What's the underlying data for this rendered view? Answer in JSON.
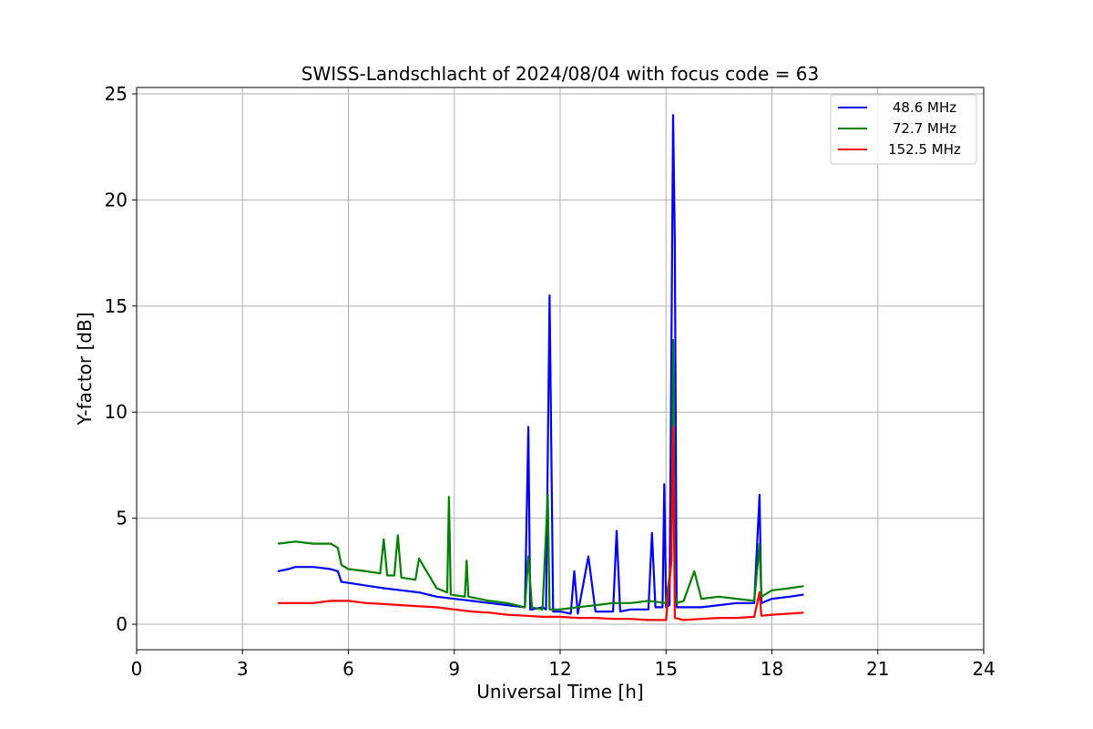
{
  "chart_data": {
    "type": "line",
    "title": "SWISS-Landschlacht of 2024/08/04 with focus code = 63",
    "xlabel": "Universal Time [h]",
    "ylabel": "Y-factor [dB]",
    "xlim": [
      0,
      24
    ],
    "ylim": [
      -1.2,
      25.3
    ],
    "xticks": [
      0,
      3,
      6,
      9,
      12,
      15,
      18,
      21,
      24
    ],
    "yticks": [
      0,
      5,
      10,
      15,
      20,
      25
    ],
    "grid": true,
    "legend_position": "top-right",
    "series": [
      {
        "name": "48.6 MHz",
        "color": "#0000ff",
        "x": [
          4.0,
          4.3,
          4.5,
          5.0,
          5.5,
          5.7,
          5.8,
          6.2,
          6.6,
          7.0,
          7.5,
          8.0,
          8.5,
          9.0,
          9.5,
          10.0,
          10.5,
          11.0,
          11.1,
          11.15,
          11.2,
          11.5,
          11.6,
          11.7,
          11.8,
          12.0,
          12.3,
          12.4,
          12.5,
          12.8,
          13.0,
          13.5,
          13.6,
          13.7,
          14.0,
          14.5,
          14.6,
          14.7,
          14.9,
          14.95,
          15.0,
          15.1,
          15.2,
          15.25,
          15.3,
          15.5,
          16.0,
          16.5,
          17.0,
          17.5,
          17.65,
          17.7,
          18.0,
          18.5,
          18.9
        ],
        "y": [
          2.5,
          2.6,
          2.7,
          2.7,
          2.6,
          2.5,
          2.0,
          1.9,
          1.8,
          1.7,
          1.6,
          1.5,
          1.3,
          1.2,
          1.1,
          1.0,
          0.9,
          0.8,
          9.3,
          0.7,
          0.7,
          0.8,
          0.7,
          15.5,
          0.6,
          0.6,
          0.5,
          2.5,
          0.5,
          3.2,
          0.6,
          0.6,
          4.4,
          0.6,
          0.7,
          0.7,
          4.3,
          0.8,
          0.8,
          6.6,
          0.8,
          0.9,
          24.0,
          18.0,
          0.8,
          0.8,
          0.8,
          0.9,
          1.0,
          1.0,
          6.1,
          1.0,
          1.2,
          1.3,
          1.4
        ]
      },
      {
        "name": "72.7 MHz",
        "color": "#008000",
        "x": [
          4.0,
          4.5,
          5.0,
          5.5,
          5.7,
          5.8,
          6.0,
          6.5,
          6.9,
          7.0,
          7.1,
          7.3,
          7.4,
          7.5,
          7.9,
          8.0,
          8.5,
          8.8,
          8.85,
          8.9,
          9.3,
          9.35,
          9.4,
          10.0,
          10.5,
          11.0,
          11.1,
          11.2,
          11.5,
          11.65,
          11.7,
          12.0,
          12.5,
          13.0,
          13.5,
          14.0,
          14.5,
          15.0,
          15.15,
          15.2,
          15.25,
          15.3,
          15.5,
          15.8,
          16.0,
          16.5,
          17.0,
          17.5,
          17.65,
          17.7,
          18.0,
          18.5,
          18.9
        ],
        "y": [
          3.8,
          3.9,
          3.8,
          3.8,
          3.6,
          2.8,
          2.6,
          2.5,
          2.4,
          4.0,
          2.3,
          2.3,
          4.2,
          2.2,
          2.1,
          3.1,
          1.7,
          1.5,
          6.0,
          1.4,
          1.3,
          3.0,
          1.3,
          1.1,
          1.0,
          0.8,
          3.2,
          0.8,
          0.7,
          6.1,
          0.7,
          0.7,
          0.8,
          0.9,
          1.0,
          1.0,
          1.1,
          1.0,
          3.0,
          13.4,
          1.5,
          1.0,
          1.1,
          2.5,
          1.2,
          1.3,
          1.2,
          1.1,
          3.8,
          1.3,
          1.6,
          1.7,
          1.8
        ]
      },
      {
        "name": "152.5 MHz",
        "color": "#ff0000",
        "x": [
          4.0,
          4.5,
          5.0,
          5.5,
          6.0,
          6.5,
          7.0,
          7.5,
          8.0,
          8.5,
          9.0,
          9.5,
          10.0,
          10.5,
          11.0,
          11.5,
          12.0,
          12.5,
          13.0,
          13.5,
          14.0,
          14.5,
          15.0,
          15.15,
          15.2,
          15.25,
          15.5,
          16.0,
          16.5,
          17.0,
          17.5,
          17.65,
          17.7,
          18.0,
          18.5,
          18.9
        ],
        "y": [
          1.0,
          1.0,
          1.0,
          1.1,
          1.1,
          1.0,
          0.95,
          0.9,
          0.85,
          0.8,
          0.7,
          0.6,
          0.55,
          0.45,
          0.4,
          0.35,
          0.35,
          0.3,
          0.3,
          0.25,
          0.25,
          0.2,
          0.2,
          3.0,
          9.3,
          0.3,
          0.2,
          0.25,
          0.3,
          0.3,
          0.35,
          1.5,
          0.4,
          0.45,
          0.5,
          0.55
        ]
      }
    ]
  }
}
